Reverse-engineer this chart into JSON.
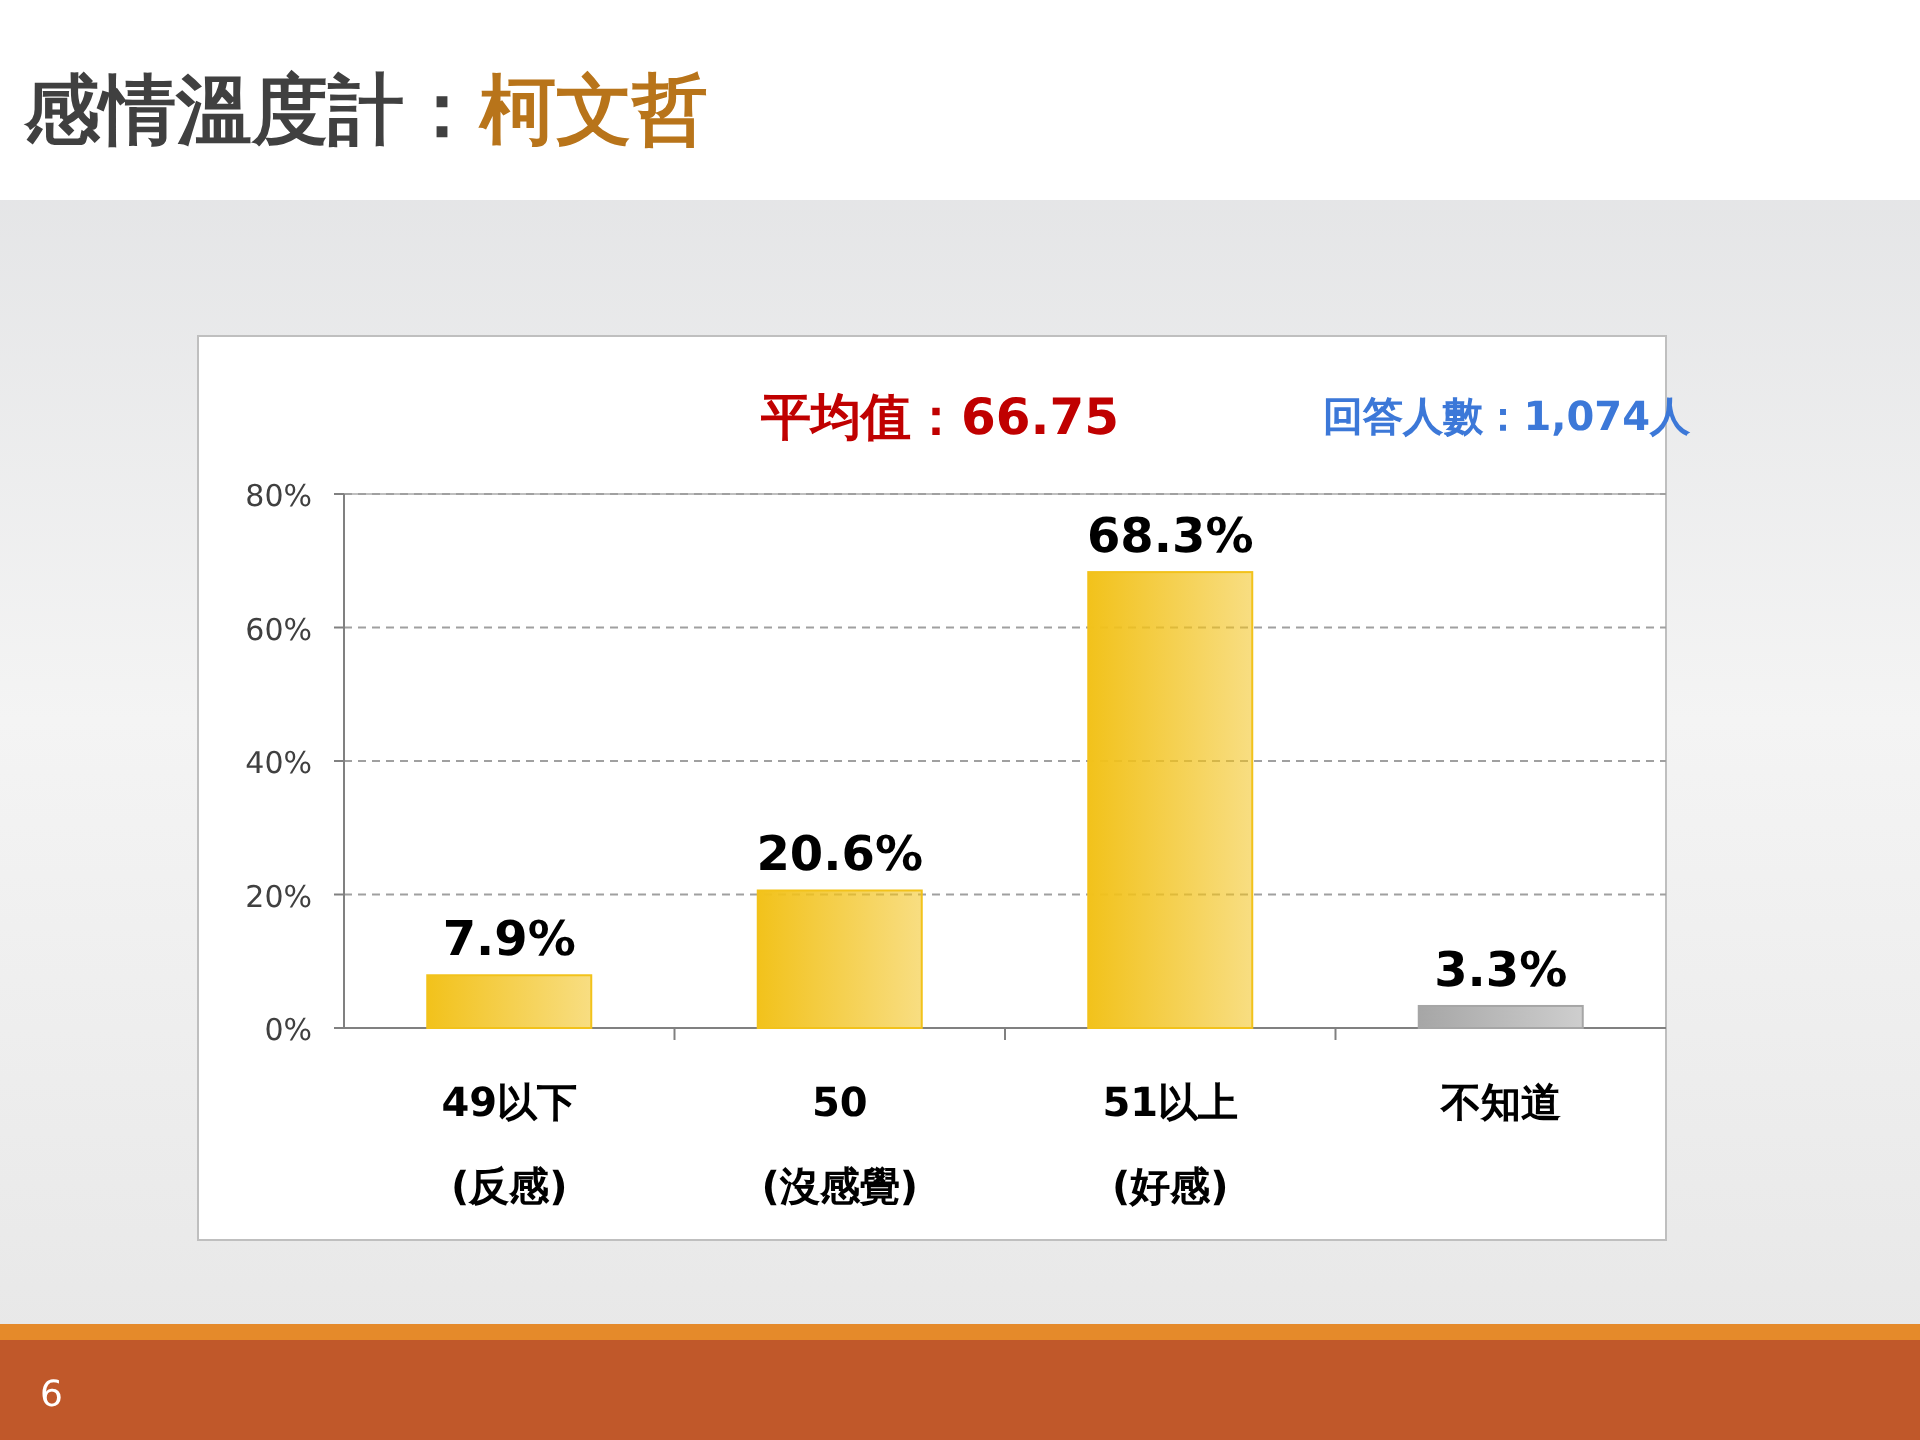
{
  "chart_data": {
    "type": "bar",
    "title": "感情溫度計：",
    "subtitle": "柯文哲",
    "categories": [
      "49以下\n(反感)",
      "50\n(沒感覺)",
      "51以上\n(好感)",
      "不知道"
    ],
    "values": [
      7.9,
      20.6,
      68.3,
      3.3
    ],
    "value_labels": [
      "7.9%",
      "20.6%",
      "68.3%",
      "3.3%"
    ],
    "colors": [
      "#f2c21b",
      "#f2c21b",
      "#f2c21b",
      "#a6a6a6"
    ],
    "ylim": [
      0,
      80
    ],
    "yticks": [
      {
        "value": 0,
        "label": "0%"
      },
      {
        "value": 20,
        "label": "20%"
      },
      {
        "value": 40,
        "label": "40%"
      },
      {
        "value": 60,
        "label": "60%"
      },
      {
        "value": 80,
        "label": "80%"
      }
    ],
    "grid": "y",
    "annotations": [
      "平均值：66.75",
      "回答人數：1,074人",
      "6"
    ]
  }
}
